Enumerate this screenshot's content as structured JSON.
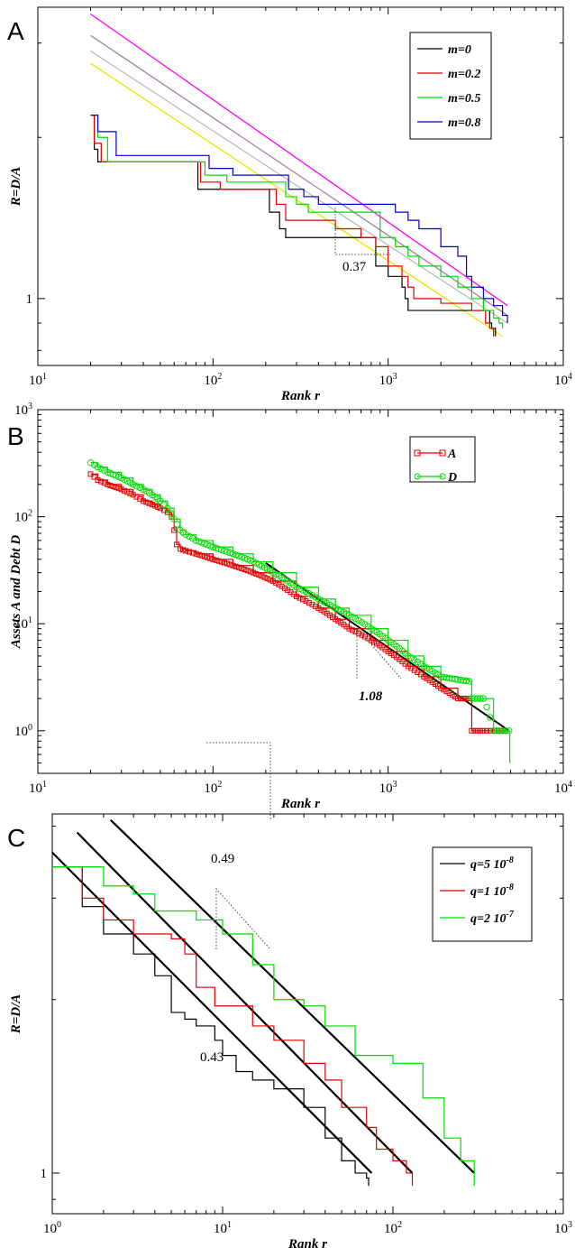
{
  "chart_data": [
    {
      "panel": "A",
      "type": "line",
      "xlabel": "Rank r",
      "ylabel": "R=D/A",
      "xscale": "log",
      "yscale": "log",
      "xlim": [
        10,
        10000
      ],
      "ylim": [
        0.75,
        3.5
      ],
      "xticks": [
        {
          "base": "10",
          "exp": "1",
          "v": 10
        },
        {
          "base": "10",
          "exp": "2",
          "v": 100
        },
        {
          "base": "10",
          "exp": "3",
          "v": 1000
        },
        {
          "base": "10",
          "exp": "4",
          "v": 10000
        }
      ],
      "yticks": [
        {
          "label": "1",
          "v": 1
        }
      ],
      "legend_position": "top-right",
      "annotation": "0.37",
      "series": [
        {
          "name": "m=0",
          "color": "#000000",
          "x": [
            20,
            21,
            22,
            80,
            82,
            100,
            200,
            210,
            240,
            260,
            500,
            600,
            700,
            800,
            850,
            1000,
            1200,
            1250,
            1300,
            1500,
            2000,
            3000,
            3500,
            3800,
            3900,
            4100
          ],
          "y": [
            2.2,
            1.9,
            1.8,
            1.8,
            1.6,
            1.6,
            1.6,
            1.45,
            1.35,
            1.3,
            1.3,
            1.3,
            1.3,
            1.3,
            1.15,
            1.1,
            1.05,
            1.0,
            0.95,
            0.95,
            0.95,
            0.95,
            0.95,
            0.9,
            0.88,
            0.85
          ]
        },
        {
          "name": "m=0.2",
          "color": "#e00000",
          "x": [
            20,
            21,
            23,
            80,
            85,
            110,
            220,
            230,
            260,
            280,
            500,
            700,
            850,
            1000,
            1200,
            1300,
            1400,
            2000,
            3000,
            3600,
            3800,
            4000
          ],
          "y": [
            2.2,
            1.95,
            1.8,
            1.8,
            1.65,
            1.6,
            1.6,
            1.5,
            1.4,
            1.4,
            1.35,
            1.3,
            1.25,
            1.15,
            1.1,
            1.05,
            1.0,
            0.98,
            0.95,
            0.9,
            0.88,
            0.85
          ]
        },
        {
          "name": "m=0.5",
          "color": "#00dd00",
          "x": [
            20,
            22,
            25,
            85,
            90,
            120,
            250,
            260,
            300,
            350,
            600,
            900,
            1000,
            1100,
            1300,
            1500,
            2000,
            2500,
            3000,
            3500,
            4000,
            4300,
            4500
          ],
          "y": [
            2.2,
            2.0,
            1.8,
            1.8,
            1.7,
            1.65,
            1.65,
            1.55,
            1.5,
            1.45,
            1.45,
            1.3,
            1.3,
            1.25,
            1.2,
            1.15,
            1.1,
            1.05,
            1.0,
            0.95,
            0.92,
            0.9,
            0.88
          ]
        },
        {
          "name": "m=0.8",
          "color": "#0000cc",
          "x": [
            20,
            22,
            28,
            90,
            95,
            130,
            260,
            270,
            330,
            400,
            700,
            1000,
            1100,
            1300,
            1500,
            2000,
            2500,
            2800,
            3000,
            3500,
            4000,
            4500,
            4800
          ],
          "y": [
            2.2,
            2.05,
            1.85,
            1.85,
            1.75,
            1.7,
            1.7,
            1.6,
            1.55,
            1.5,
            1.5,
            1.5,
            1.45,
            1.4,
            1.35,
            1.25,
            1.2,
            1.1,
            1.05,
            1.0,
            0.97,
            0.93,
            0.9
          ]
        },
        {
          "name": "",
          "color": "#ff00ff",
          "x": [
            20,
            4800
          ],
          "y": [
            3.4,
            0.97
          ]
        },
        {
          "name": "",
          "color": "#a080a0",
          "x": [
            20,
            4800
          ],
          "y": [
            3.1,
            0.93
          ]
        },
        {
          "name": "",
          "color": "#bbbbbb",
          "x": [
            20,
            4800
          ],
          "y": [
            2.9,
            0.9
          ]
        },
        {
          "name": "",
          "color": "#e6e600",
          "x": [
            20,
            4500
          ],
          "y": [
            2.75,
            0.85
          ]
        }
      ]
    },
    {
      "panel": "B",
      "type": "scatter",
      "xlabel": "Rank r",
      "ylabel": "Assets A and Debt D",
      "xscale": "log",
      "yscale": "log",
      "xlim": [
        10,
        10000
      ],
      "ylim": [
        0.4,
        1000
      ],
      "xticks": [
        {
          "base": "10",
          "exp": "1",
          "v": 10
        },
        {
          "base": "10",
          "exp": "2",
          "v": 100
        },
        {
          "base": "10",
          "exp": "3",
          "v": 1000
        },
        {
          "base": "10",
          "exp": "4",
          "v": 10000
        }
      ],
      "yticks": [
        {
          "base": "10",
          "exp": "0",
          "v": 1
        },
        {
          "base": "10",
          "exp": "1",
          "v": 10
        },
        {
          "base": "10",
          "exp": "2",
          "v": 100
        },
        {
          "base": "10",
          "exp": "3",
          "v": 1000
        }
      ],
      "legend_position": "top-right",
      "annotation": "1.08",
      "series": [
        {
          "name": "A",
          "color": "#e00000",
          "marker": "square",
          "x": [
            20,
            22,
            25,
            30,
            35,
            40,
            45,
            50,
            55,
            58,
            60,
            62,
            65,
            70,
            80,
            100,
            130,
            170,
            220,
            300,
            400,
            500,
            600,
            800,
            1000,
            1300,
            1600,
            2000,
            2500,
            2900,
            3000,
            3500,
            4000,
            4500,
            4900
          ],
          "y": [
            250,
            220,
            200,
            180,
            160,
            140,
            130,
            120,
            110,
            100,
            75,
            55,
            50,
            48,
            45,
            40,
            35,
            30,
            25,
            18,
            14,
            11,
            9,
            7,
            5.5,
            4,
            3.2,
            2.5,
            2,
            2,
            1,
            1,
            1,
            1,
            1
          ]
        },
        {
          "name": "D",
          "color": "#00dd00",
          "marker": "circle",
          "x": [
            20,
            22,
            25,
            30,
            35,
            40,
            45,
            50,
            55,
            60,
            65,
            70,
            80,
            100,
            130,
            170,
            220,
            300,
            400,
            500,
            600,
            800,
            1000,
            1300,
            1600,
            2000,
            2500,
            2900,
            3000,
            3500,
            4000,
            4500,
            4900,
            4950
          ],
          "y": [
            320,
            290,
            260,
            230,
            200,
            180,
            160,
            140,
            120,
            95,
            75,
            68,
            60,
            52,
            45,
            38,
            30,
            22,
            17,
            14,
            12,
            9,
            7,
            5,
            4,
            3.2,
            3,
            2.9,
            2,
            2,
            1,
            1,
            1,
            0.5
          ]
        },
        {
          "name": "",
          "color": "#000000",
          "marker": "none",
          "x": [
            200,
            4900
          ],
          "y": [
            37,
            1.0
          ]
        }
      ]
    },
    {
      "panel": "C",
      "type": "line",
      "xlabel": "Rank r",
      "ylabel": "R=D/A",
      "xscale": "log",
      "yscale": "log",
      "xlim": [
        1,
        1000
      ],
      "ylim": [
        0.85,
        4.2
      ],
      "xticks": [
        {
          "base": "10",
          "exp": "0",
          "v": 1
        },
        {
          "base": "10",
          "exp": "1",
          "v": 10
        },
        {
          "base": "10",
          "exp": "2",
          "v": 100
        },
        {
          "base": "10",
          "exp": "3",
          "v": 1000
        }
      ],
      "yticks": [
        {
          "label": "1",
          "v": 1
        }
      ],
      "legend_position": "top-right",
      "annotations": [
        "0.49",
        "0.43"
      ],
      "series": [
        {
          "name": "q=5 10",
          "sup": "-8",
          "color": "#000000",
          "x": [
            1,
            1.5,
            2,
            3,
            4,
            5,
            6,
            7,
            9,
            10,
            12,
            15,
            20,
            30,
            40,
            50,
            60,
            70,
            72
          ],
          "y": [
            3.4,
            2.9,
            2.6,
            2.4,
            2.2,
            1.9,
            1.85,
            1.8,
            1.7,
            1.6,
            1.5,
            1.45,
            1.4,
            1.3,
            1.15,
            1.05,
            1.0,
            0.98,
            0.95
          ]
        },
        {
          "name": "q=1 10",
          "sup": "-8",
          "color": "#e00000",
          "x": [
            1,
            1.5,
            2,
            3,
            5,
            6,
            7,
            9,
            11,
            15,
            20,
            30,
            40,
            50,
            70,
            80,
            100,
            120,
            130
          ],
          "y": [
            3.4,
            3.0,
            2.75,
            2.6,
            2.55,
            2.4,
            2.1,
            1.95,
            1.95,
            1.8,
            1.7,
            1.55,
            1.45,
            1.3,
            1.2,
            1.1,
            1.05,
            1.0,
            0.95
          ]
        },
        {
          "name": "q=2 10",
          "sup": "-7",
          "color": "#00dd00",
          "x": [
            1,
            2,
            3,
            4,
            7,
            10,
            15,
            20,
            30,
            40,
            60,
            100,
            150,
            200,
            250,
            300
          ],
          "y": [
            3.4,
            3.15,
            3.05,
            2.85,
            2.75,
            2.6,
            2.3,
            2.0,
            1.95,
            1.8,
            1.6,
            1.55,
            1.35,
            1.15,
            1.05,
            0.95
          ]
        },
        {
          "name": "",
          "color": "#000000",
          "x": [
            1,
            75
          ],
          "y": [
            3.6,
            1.0
          ]
        },
        {
          "name": "",
          "color": "#000000",
          "x": [
            1.4,
            130
          ],
          "y": [
            3.9,
            1.0
          ]
        },
        {
          "name": "",
          "color": "#000000",
          "x": [
            2.2,
            300
          ],
          "y": [
            4.1,
            1.0
          ]
        }
      ]
    }
  ],
  "panel_letters": [
    "A",
    "B",
    "C"
  ]
}
